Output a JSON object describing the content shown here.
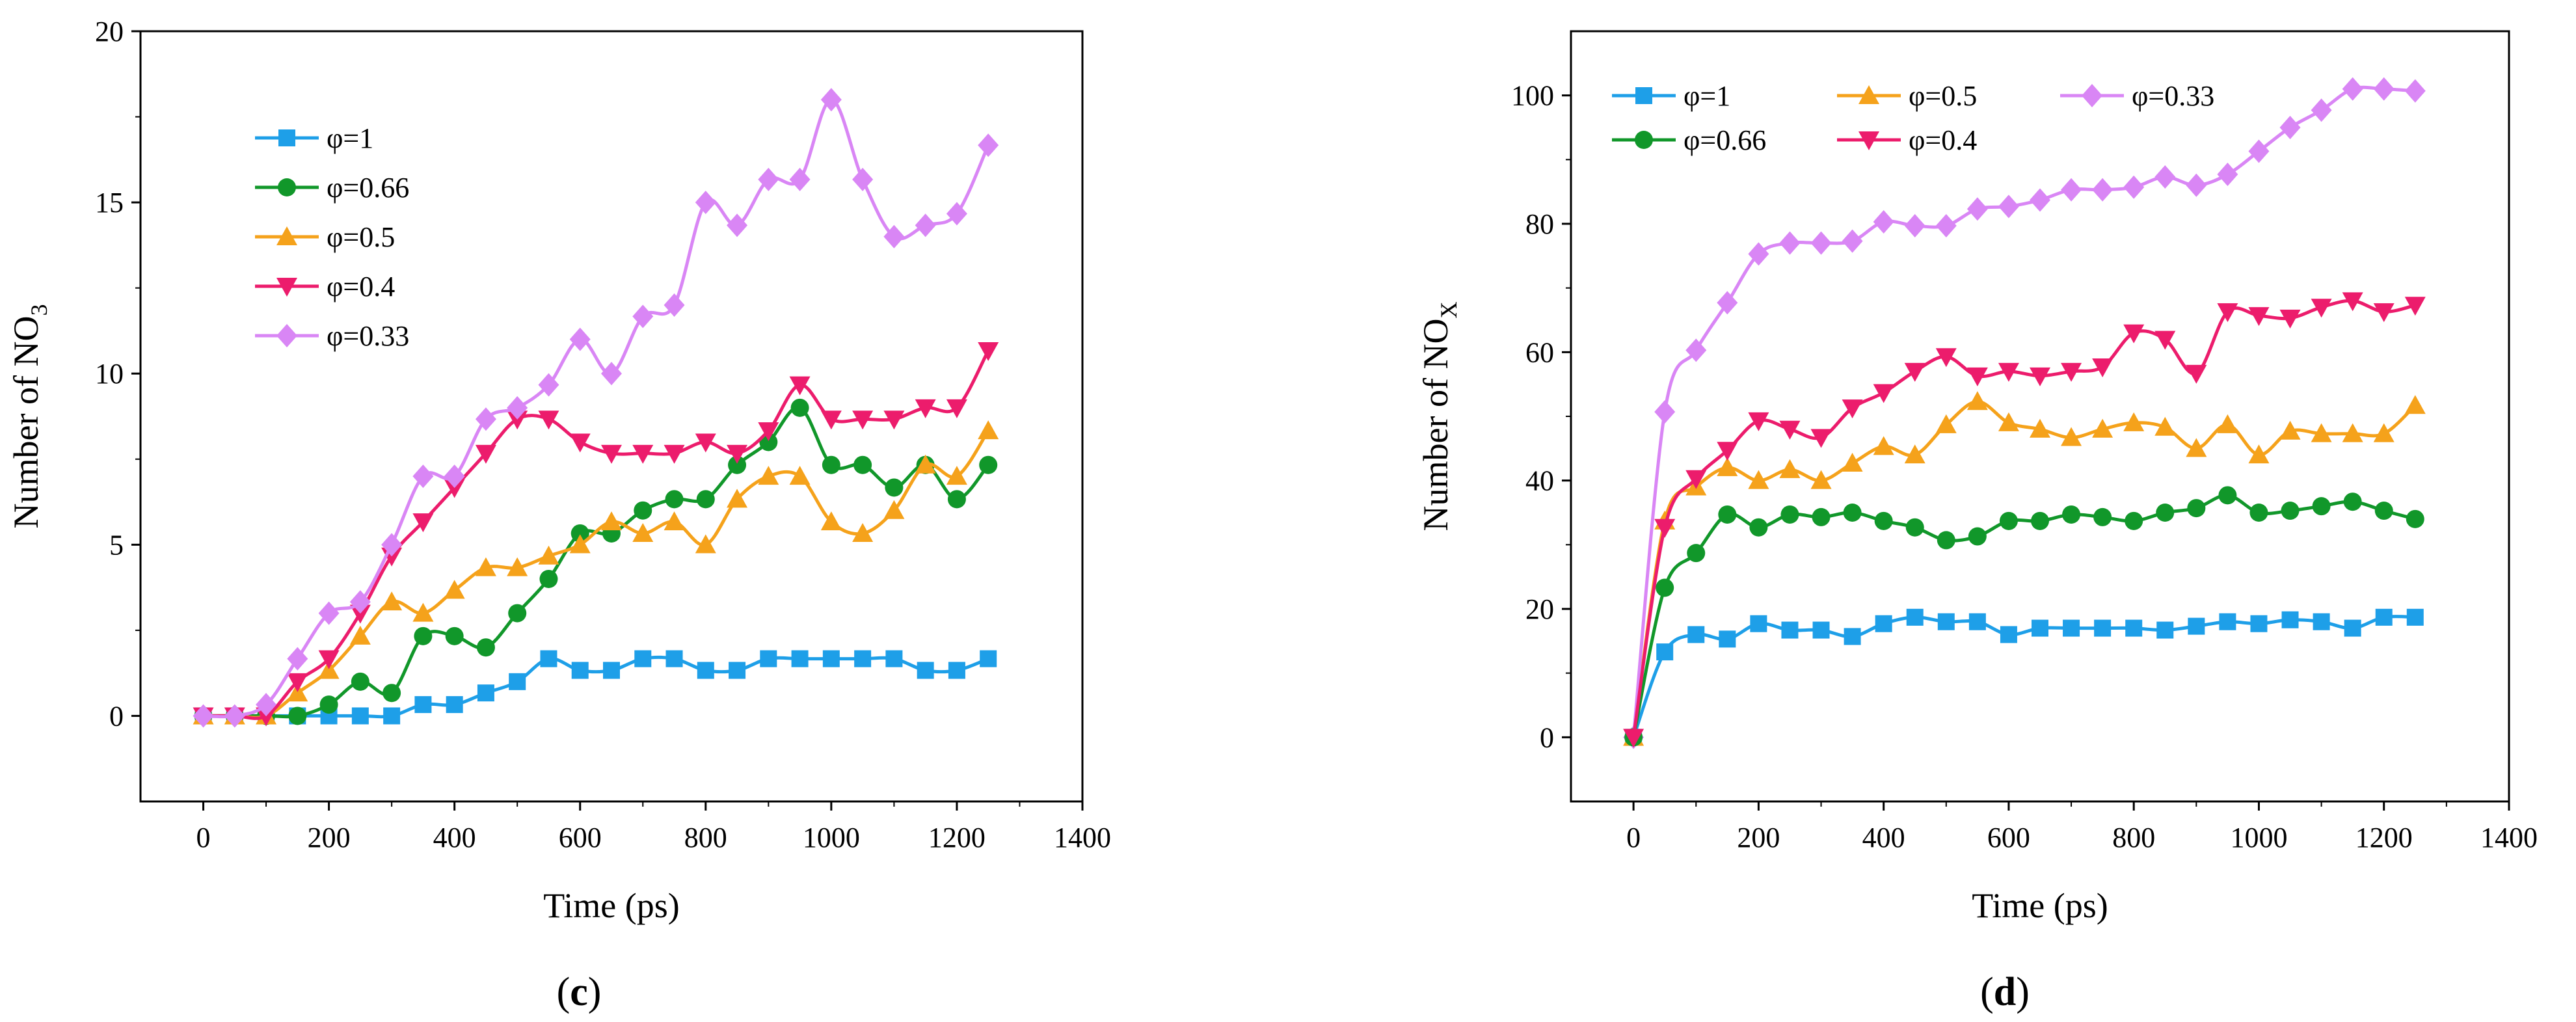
{
  "figure": {
    "charts": [
      {
        "caption_prefix": "(",
        "caption_letter": "c",
        "caption_suffix": ")"
      },
      {
        "caption_prefix": "(",
        "caption_letter": "d",
        "caption_suffix": ")"
      }
    ]
  },
  "chart_data": [
    {
      "type": "line",
      "id": "c",
      "title": "",
      "xlabel": "Time (ps)",
      "ylabel_main": "Number of NO",
      "ylabel_sub": "3",
      "xlim": [
        -100,
        1400
      ],
      "ylim": [
        -2.5,
        20
      ],
      "xticks": [
        0,
        200,
        400,
        600,
        800,
        1000,
        1200,
        1400
      ],
      "yticks": [
        0,
        5,
        10,
        15,
        20
      ],
      "legend": {
        "placement": "top-left",
        "layout": "column"
      },
      "x": [
        0,
        50,
        100,
        150,
        200,
        250,
        300,
        350,
        400,
        450,
        500,
        550,
        600,
        650,
        700,
        750,
        800,
        850,
        900,
        950,
        1000,
        1050,
        1100,
        1150,
        1200,
        1250
      ],
      "series": [
        {
          "name": "φ=1",
          "color": "#1e9fe8",
          "marker": "square",
          "values": [
            0,
            0,
            0,
            0,
            0,
            0,
            0,
            0.33,
            0.33,
            0.67,
            1.0,
            1.67,
            1.33,
            1.33,
            1.67,
            1.67,
            1.33,
            1.33,
            1.67,
            1.67,
            1.67,
            1.67,
            1.67,
            1.33,
            1.33,
            1.67
          ]
        },
        {
          "name": "φ=0.66",
          "color": "#11972a",
          "marker": "circle",
          "values": [
            0,
            0,
            0,
            0,
            0.33,
            1.0,
            0.67,
            2.33,
            2.33,
            2.0,
            3.0,
            4.0,
            5.33,
            5.33,
            6.0,
            6.33,
            6.33,
            7.33,
            8.0,
            9.0,
            7.33,
            7.33,
            6.67,
            7.33,
            6.33,
            7.33
          ]
        },
        {
          "name": "φ=0.5",
          "color": "#f5a21b",
          "marker": "triangle-up",
          "values": [
            0,
            0,
            0,
            0.67,
            1.33,
            2.33,
            3.33,
            3.0,
            3.67,
            4.33,
            4.33,
            4.67,
            5.0,
            5.67,
            5.33,
            5.67,
            5.0,
            6.33,
            7.0,
            7.0,
            5.67,
            5.33,
            6.0,
            7.33,
            7.0,
            8.33
          ]
        },
        {
          "name": "φ=0.4",
          "color": "#ec1c6c",
          "marker": "triangle-down",
          "values": [
            0,
            0,
            0,
            1.0,
            1.67,
            3.0,
            4.67,
            5.67,
            6.67,
            7.67,
            8.67,
            8.67,
            8.0,
            7.67,
            7.67,
            7.67,
            8.0,
            7.67,
            8.33,
            9.67,
            8.67,
            8.67,
            8.67,
            9.0,
            9.0,
            10.67
          ]
        },
        {
          "name": "φ=0.33",
          "color": "#d986f5",
          "marker": "diamond",
          "values": [
            0,
            0,
            0.33,
            1.67,
            3.0,
            3.33,
            5.0,
            7.0,
            7.0,
            8.67,
            9.0,
            9.67,
            11.0,
            10.0,
            11.67,
            12.0,
            15.0,
            14.33,
            15.67,
            15.67,
            18.0,
            15.67,
            14.0,
            14.33,
            14.67,
            16.67
          ]
        }
      ]
    },
    {
      "type": "line",
      "id": "d",
      "title": "",
      "xlabel": "Time (ps)",
      "ylabel_main": "Number of NO",
      "ylabel_sub": "X",
      "xlim": [
        -100,
        1400
      ],
      "ylim": [
        -10,
        110
      ],
      "xticks": [
        0,
        200,
        400,
        600,
        800,
        1000,
        1200,
        1400
      ],
      "yticks": [
        0,
        20,
        40,
        60,
        80,
        100
      ],
      "legend": {
        "placement": "top",
        "layout": "grid"
      },
      "x": [
        0,
        50,
        100,
        150,
        200,
        250,
        300,
        350,
        400,
        450,
        500,
        550,
        600,
        650,
        700,
        750,
        800,
        850,
        900,
        950,
        1000,
        1050,
        1100,
        1150,
        1200,
        1250
      ],
      "series": [
        {
          "name": "φ=1",
          "color": "#1e9fe8",
          "marker": "square",
          "values": [
            0,
            13.3,
            16.0,
            15.3,
            17.7,
            16.7,
            16.7,
            15.7,
            17.7,
            18.7,
            18.0,
            18.0,
            16.0,
            17.0,
            17.0,
            17.0,
            17.0,
            16.7,
            17.3,
            18.0,
            17.7,
            18.3,
            18.0,
            17.0,
            18.7,
            18.7
          ]
        },
        {
          "name": "φ=0.5",
          "color": "#f5a21b",
          "marker": "triangle-up",
          "values": [
            0,
            33.7,
            39.0,
            42.0,
            40.0,
            41.7,
            40.0,
            42.7,
            45.3,
            44.0,
            48.7,
            52.3,
            49.0,
            48.0,
            46.7,
            48.0,
            49.0,
            48.3,
            45.0,
            48.7,
            44.0,
            47.7,
            47.3,
            47.3,
            47.3,
            51.7
          ]
        },
        {
          "name": "φ=0.33",
          "color": "#d986f5",
          "marker": "diamond",
          "values": [
            0,
            50.7,
            60.3,
            67.7,
            75.3,
            77.0,
            77.0,
            77.3,
            80.3,
            79.7,
            79.7,
            82.3,
            82.7,
            83.7,
            85.3,
            85.3,
            85.7,
            87.3,
            86.0,
            87.7,
            91.3,
            95.0,
            97.7,
            101.0,
            101.0,
            100.7
          ]
        },
        {
          "name": "φ=0.66",
          "color": "#11972a",
          "marker": "circle",
          "values": [
            0,
            23.3,
            28.7,
            34.7,
            32.7,
            34.7,
            34.3,
            35.0,
            33.7,
            32.7,
            30.7,
            31.3,
            33.7,
            33.7,
            34.7,
            34.3,
            33.7,
            35.0,
            35.7,
            37.7,
            35.0,
            35.3,
            36.0,
            36.7,
            35.3,
            34.0
          ]
        },
        {
          "name": "φ=0.4",
          "color": "#ec1c6c",
          "marker": "triangle-down",
          "values": [
            0,
            32.7,
            40.3,
            44.7,
            49.3,
            48.0,
            46.7,
            51.3,
            53.7,
            57.0,
            59.3,
            56.3,
            57.0,
            56.3,
            57.0,
            57.7,
            63.0,
            62.0,
            56.7,
            66.3,
            65.7,
            65.3,
            67.0,
            68.0,
            66.3,
            67.3
          ]
        }
      ]
    }
  ]
}
